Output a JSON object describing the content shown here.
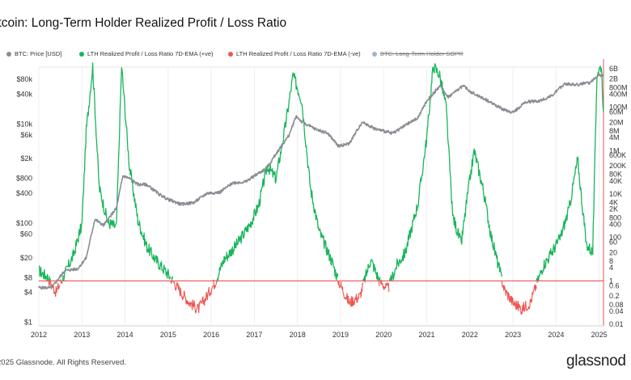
{
  "title": "itcoin: Long-Term Holder Realized Profit / Loss Ratio",
  "legend": [
    {
      "label": "BTC: Price [USD]",
      "color": "#8a8e94",
      "struck": false
    },
    {
      "label": "LTH Realized Profit / Loss Ratio 7D-EMA (+ve)",
      "color": "#18b55a",
      "struck": false
    },
    {
      "label": "LTH Realized Profit / Loss Ratio 7D-EMA (-ve)",
      "color": "#ee5552",
      "struck": false
    },
    {
      "label": "BTC: Long-Term Holder SOPR",
      "color": "#9db4d6",
      "struck": true
    }
  ],
  "footer": "2025 Glassnode. All Rights Reserved.",
  "brand": "glassnod",
  "chart_data": {
    "type": "line",
    "x_ticks": [
      "2012",
      "2013",
      "2014",
      "2015",
      "2016",
      "2017",
      "2018",
      "2019",
      "2020",
      "2021",
      "2022",
      "2023",
      "2024",
      "2025"
    ],
    "y_left_ticks": [
      "$80k",
      "$40k",
      "$10k",
      "$6k",
      "$2k",
      "$800",
      "$400",
      "$100",
      "$60",
      "$20",
      "$8",
      "$4",
      "$1"
    ],
    "y_left_values": [
      80000,
      40000,
      10000,
      6000,
      2000,
      800,
      400,
      100,
      60,
      20,
      8,
      4,
      1
    ],
    "y_right_ticks": [
      "6B",
      "2B",
      "800M",
      "400M",
      "100M",
      "60M",
      "20M",
      "8M",
      "4M",
      "1M",
      "600K",
      "200K",
      "80K",
      "40K",
      "10K",
      "4K",
      "2K",
      "800",
      "400",
      "100",
      "60",
      "20",
      "8",
      "4",
      "1",
      "0.6",
      "0.2",
      "0.08",
      "0.04",
      "0.01"
    ],
    "y_right_values": [
      6000000000,
      2000000000,
      800000000,
      400000000,
      100000000,
      60000000,
      20000000,
      8000000,
      4000000,
      1000000,
      600000,
      200000,
      80000,
      40000,
      10000,
      4000,
      2000,
      800,
      400,
      100,
      60,
      20,
      8,
      4,
      1,
      0.6,
      0.2,
      0.08,
      0.04,
      0.01
    ],
    "threshold": 1,
    "threshold_color": "#ee5552",
    "price_color": "#8a8e94",
    "ratio_pos_color": "#18b55a",
    "ratio_neg_color": "#ee5552",
    "y_scale": "log",
    "x_range": [
      2012.0,
      2025.1
    ],
    "series": [
      {
        "name": "BTC: Price [USD]",
        "x": [
          2012.0,
          2012.3,
          2012.6,
          2012.9,
          2013.1,
          2013.3,
          2013.5,
          2013.8,
          2013.95,
          2014.1,
          2014.3,
          2014.5,
          2014.8,
          2015.0,
          2015.3,
          2015.6,
          2015.9,
          2016.2,
          2016.5,
          2016.8,
          2017.0,
          2017.3,
          2017.5,
          2017.8,
          2017.97,
          2018.1,
          2018.4,
          2018.7,
          2018.95,
          2019.2,
          2019.5,
          2019.8,
          2020.0,
          2020.2,
          2020.5,
          2020.8,
          2021.0,
          2021.3,
          2021.5,
          2021.85,
          2022.0,
          2022.4,
          2022.8,
          2023.0,
          2023.3,
          2023.6,
          2023.9,
          2024.2,
          2024.5,
          2024.8,
          2024.95,
          2025.1
        ],
        "y": [
          5,
          5,
          11,
          12,
          20,
          120,
          90,
          200,
          900,
          800,
          600,
          600,
          380,
          300,
          240,
          260,
          400,
          420,
          650,
          680,
          900,
          1300,
          2500,
          5800,
          14500,
          11000,
          8000,
          6500,
          3600,
          4000,
          11000,
          8000,
          7200,
          6500,
          9300,
          13500,
          29000,
          58000,
          35000,
          60000,
          45000,
          30000,
          19000,
          17000,
          28000,
          29000,
          37000,
          65000,
          62000,
          68000,
          95000,
          97000
        ]
      },
      {
        "name": "LTH Realized Profit / Loss Ratio 7D-EMA",
        "x": [
          2012.0,
          2012.2,
          2012.4,
          2012.6,
          2012.8,
          2013.0,
          2013.1,
          2013.25,
          2013.4,
          2013.6,
          2013.8,
          2013.92,
          2014.1,
          2014.3,
          2014.5,
          2014.7,
          2015.0,
          2015.3,
          2015.5,
          2015.7,
          2015.9,
          2016.1,
          2016.3,
          2016.6,
          2016.9,
          2017.1,
          2017.3,
          2017.5,
          2017.7,
          2017.9,
          2018.1,
          2018.3,
          2018.5,
          2018.8,
          2018.95,
          2019.2,
          2019.45,
          2019.7,
          2019.9,
          2020.1,
          2020.3,
          2020.5,
          2020.8,
          2021.0,
          2021.15,
          2021.3,
          2021.45,
          2021.6,
          2021.8,
          2021.95,
          2022.1,
          2022.3,
          2022.5,
          2022.8,
          2023.0,
          2023.2,
          2023.4,
          2023.7,
          2023.9,
          2024.1,
          2024.3,
          2024.5,
          2024.7,
          2024.85,
          2024.95,
          2025.05,
          2025.1
        ],
        "y": [
          3,
          1.5,
          0.3,
          2,
          15,
          400,
          8000000,
          8000000000,
          20000,
          500,
          300,
          8000000000,
          200000,
          600,
          40,
          10,
          2,
          0.3,
          0.1,
          0.05,
          0.2,
          1,
          10,
          50,
          400,
          3000,
          200000,
          50000,
          8000000,
          3000000000,
          200000000,
          20000,
          200,
          8,
          1,
          0.1,
          0.2,
          10,
          1,
          0.4,
          5,
          20,
          4000,
          4000000,
          8000000000,
          3000000000,
          100000000,
          1000,
          50,
          10000,
          1000000,
          20000,
          100,
          0.4,
          0.1,
          0.05,
          0.1,
          5,
          20,
          100,
          2000,
          400000,
          50,
          20,
          4000000000,
          8000000000,
          60000000
        ]
      }
    ]
  }
}
